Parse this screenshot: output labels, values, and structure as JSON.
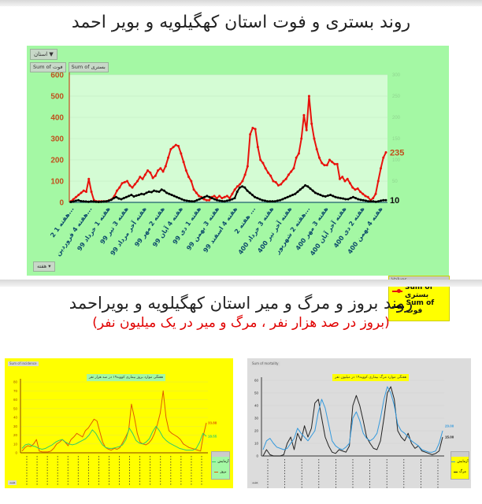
{
  "header": {
    "title": "روند بستری و فوت استان کهگیلویه و بویر احمد"
  },
  "main_chart": {
    "filter_button": "استان ▼",
    "field_buttons": [
      "Sum of فوت",
      "Sum of بستری"
    ],
    "axis_field_button": "هفته ▾",
    "legend_header": "Values",
    "legend_items": [
      "Sum of بستری",
      "Sum of فوت"
    ],
    "end_labels": {
      "hospitalized": "235",
      "deaths": "10"
    },
    "colors": {
      "hospitalized": "#e8120c",
      "deaths": "#000000",
      "axis_left": "#c0501e",
      "panel": "#a4f8a4",
      "plot": "#d4fcd4"
    }
  },
  "section2": {
    "title": "روند بروز و مرگ و میر استان کهگیلویه و بویراحمد",
    "subtitle": "(بروز در صد هزار نفر ، مرگ و میر در یک میلیون نفر)"
  },
  "small_chart_left": {
    "tag": "Sum of incidence",
    "title": "هفتگی موارد بروز بیماری کووید۱۹ در صد هزار نفر",
    "legend": [
      "آزمایش",
      "بروز"
    ],
    "end_labels": [
      "33.88",
      "18.55"
    ],
    "footer": "هفته"
  },
  "small_chart_right": {
    "tag": "Sum of mortality",
    "title": "هفتگی موارد مرگ بیماری کووید۱۹ در میلیون نفر",
    "legend": [
      "آزمایش",
      "مرگ"
    ],
    "end_labels": [
      "20.00",
      "15.00"
    ],
    "footer": "هفته"
  },
  "chart_data": [
    {
      "type": "line",
      "title": "روند بستری و فوت استان کهگیلویه و بویر احمد",
      "xlabel": "هفته",
      "ylabel": "",
      "ylim": [
        0,
        600
      ],
      "y_ticks": [
        0,
        100,
        200,
        300,
        400,
        500,
        600
      ],
      "y2lim": [
        0,
        300
      ],
      "y2_ticks": [
        0,
        50,
        100,
        150,
        200,
        250,
        300
      ],
      "grid": true,
      "legend_position": "bottom-right",
      "categories": [
        "هفته 1 2...",
        "هفته 4 فروردین...",
        "هفته 1 خرداد 99",
        "هفته 3 تیر 99",
        "هفته آخر مرداد 99",
        "هفته 2 مهر 99",
        "هفته 4 آبان 99",
        "هفته 1 دی 99",
        "هفته 3 بهمن 99",
        "هفته 4 اسفند 99",
        "هفته 2 ...",
        "هفته 3 خرداد 400",
        "هفته آخر تیر 400",
        "هفته 2 شهریور...",
        "هفته 3 مهر 400",
        "هفته آخر آبان 400",
        "هفته 2 دی 400",
        "هفته 4 بهمن 400"
      ],
      "series": [
        {
          "name": "Sum of بستری",
          "color": "#e8120c",
          "values": [
            5,
            15,
            25,
            35,
            45,
            55,
            50,
            110,
            50,
            10,
            5,
            5,
            5,
            5,
            5,
            10,
            15,
            30,
            55,
            70,
            90,
            95,
            100,
            80,
            70,
            85,
            100,
            120,
            110,
            130,
            150,
            140,
            115,
            125,
            150,
            160,
            145,
            170,
            210,
            250,
            260,
            270,
            265,
            230,
            190,
            150,
            120,
            100,
            60,
            45,
            30,
            25,
            15,
            10,
            10,
            25,
            30,
            20,
            30,
            20,
            25,
            30,
            20,
            40,
            60,
            75,
            85,
            100,
            130,
            170,
            320,
            350,
            345,
            260,
            200,
            185,
            160,
            140,
            125,
            100,
            95,
            80,
            85,
            100,
            110,
            130,
            145,
            160,
            210,
            230,
            300,
            410,
            340,
            500,
            370,
            300,
            250,
            210,
            185,
            175,
            175,
            200,
            190,
            180,
            180,
            110,
            120,
            100,
            110,
            90,
            70,
            60,
            65,
            50,
            40,
            30,
            25,
            10,
            20,
            40,
            100,
            160,
            210,
            235
          ],
          "end_label": 235
        },
        {
          "name": "Sum of فوت",
          "color": "#000000",
          "values": [
            2,
            4,
            8,
            10,
            6,
            5,
            4,
            3,
            5,
            4,
            3,
            2,
            3,
            4,
            5,
            8,
            12,
            20,
            25,
            18,
            15,
            20,
            25,
            30,
            35,
            28,
            32,
            35,
            40,
            38,
            45,
            50,
            48,
            55,
            52,
            50,
            60,
            55,
            45,
            40,
            35,
            30,
            25,
            20,
            15,
            10,
            8,
            6,
            5,
            5,
            10,
            15,
            20,
            25,
            30,
            25,
            20,
            15,
            10,
            8,
            6,
            5,
            8,
            10,
            15,
            20,
            50,
            70,
            75,
            70,
            55,
            45,
            35,
            25,
            20,
            15,
            10,
            8,
            5,
            5,
            5,
            5,
            8,
            10,
            15,
            20,
            25,
            30,
            35,
            40,
            50,
            60,
            70,
            80,
            75,
            65,
            55,
            45,
            40,
            35,
            30,
            28,
            32,
            35,
            30,
            25,
            22,
            20,
            18,
            15,
            15,
            20,
            25,
            20,
            15,
            12,
            10,
            8,
            5,
            5,
            5,
            3,
            5,
            8,
            10,
            10
          ],
          "end_label": 10
        }
      ]
    },
    {
      "type": "line",
      "title": "هفتگی موارد بروز بیماری کووید۱۹ در صد هزار نفر",
      "ylim": [
        0,
        80
      ],
      "y_ticks": [
        0,
        10,
        20,
        30,
        40,
        50,
        60,
        70,
        80
      ],
      "series": [
        {
          "name": "بروز",
          "color": "#e05a00",
          "values": [
            2,
            6,
            8,
            7,
            10,
            15,
            2,
            1,
            1,
            1,
            2,
            5,
            10,
            12,
            15,
            12,
            8,
            15,
            18,
            22,
            20,
            18,
            25,
            28,
            33,
            38,
            36,
            24,
            12,
            6,
            4,
            3,
            5,
            4,
            6,
            12,
            18,
            25,
            55,
            40,
            22,
            12,
            10,
            9,
            11,
            15,
            22,
            32,
            45,
            70,
            40,
            25,
            22,
            20,
            18,
            15,
            10,
            8,
            6,
            5,
            4,
            3,
            2,
            20,
            33.88
          ],
          "end_label": "33.88"
        },
        {
          "name": "آزمایش",
          "color": "#33cc66",
          "values": [
            5,
            9,
            10,
            8,
            7,
            5,
            4,
            5,
            7,
            9,
            12,
            14,
            15,
            12,
            10,
            9,
            10,
            12,
            14,
            16,
            20,
            26,
            22,
            15,
            9,
            6,
            5,
            5,
            6,
            7,
            9,
            15,
            28,
            22,
            14,
            11,
            10,
            12,
            16,
            24,
            30,
            25,
            18,
            14,
            11,
            9,
            7,
            5,
            4,
            3,
            3,
            3,
            5,
            12,
            22,
            18.55
          ],
          "end_label": "18.55"
        }
      ]
    },
    {
      "type": "line",
      "title": "هفتگی موارد مرگ بیماری کووید۱۹ در میلیون نفر",
      "ylim": [
        0,
        60
      ],
      "y_ticks": [
        0,
        10,
        20,
        30,
        40,
        50,
        60
      ],
      "series": [
        {
          "name": "مرگ",
          "color": "#222222",
          "values": [
            0,
            5,
            1,
            0,
            0,
            0,
            1,
            10,
            15,
            5,
            18,
            12,
            24,
            15,
            22,
            42,
            45,
            30,
            15,
            8,
            3,
            2,
            5,
            4,
            3,
            8,
            40,
            48,
            40,
            28,
            15,
            10,
            6,
            5,
            12,
            30,
            50,
            55,
            45,
            20,
            15,
            12,
            18,
            10,
            6,
            8,
            4,
            3,
            2,
            1,
            2,
            4,
            15
          ],
          "end_label": "15.00"
        },
        {
          "name": "آزمایش",
          "color": "#3399dd",
          "values": [
            5,
            12,
            14,
            10,
            7,
            6,
            5,
            6,
            10,
            14,
            22,
            18,
            15,
            12,
            16,
            20,
            35,
            45,
            38,
            25,
            12,
            8,
            6,
            5,
            7,
            10,
            30,
            35,
            28,
            18,
            14,
            12,
            14,
            18,
            30,
            45,
            55,
            50,
            40,
            25,
            20,
            18,
            15,
            12,
            10,
            8,
            5,
            4,
            3,
            3,
            4,
            10,
            20
          ],
          "end_label": "20.00"
        }
      ]
    }
  ]
}
